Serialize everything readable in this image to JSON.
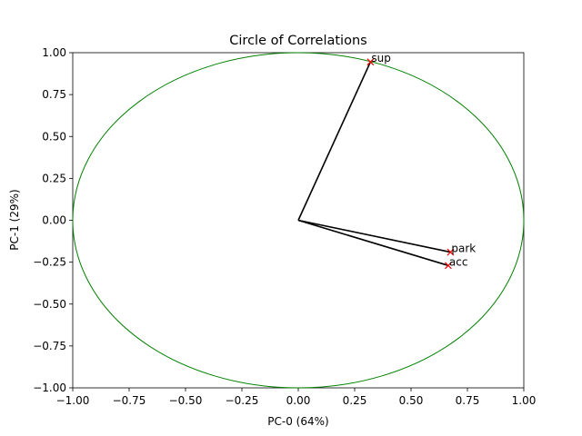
{
  "chart_data": {
    "type": "scatter",
    "title": "Circle of Correlations",
    "xlabel": "PC-0 (64%)",
    "ylabel": "PC-1 (29%)",
    "xlim": [
      -1.0,
      1.0
    ],
    "ylim": [
      -1.0,
      1.0
    ],
    "xticks": [
      "−1.00",
      "−0.75",
      "−0.50",
      "−0.25",
      "0.00",
      "0.25",
      "0.50",
      "0.75",
      "1.00"
    ],
    "yticks": [
      "−1.00",
      "−0.75",
      "−0.50",
      "−0.25",
      "0.00",
      "0.25",
      "0.50",
      "0.75",
      "1.00"
    ],
    "grid": false,
    "circle": {
      "radius": 1.0,
      "color": "#008000"
    },
    "arrow_color": "#000000",
    "marker_color": "#ff0000",
    "points": [
      {
        "label": "sup",
        "x": 0.32,
        "y": 0.945
      },
      {
        "label": "park",
        "x": 0.675,
        "y": -0.19
      },
      {
        "label": "acc",
        "x": 0.665,
        "y": -0.27
      }
    ]
  }
}
